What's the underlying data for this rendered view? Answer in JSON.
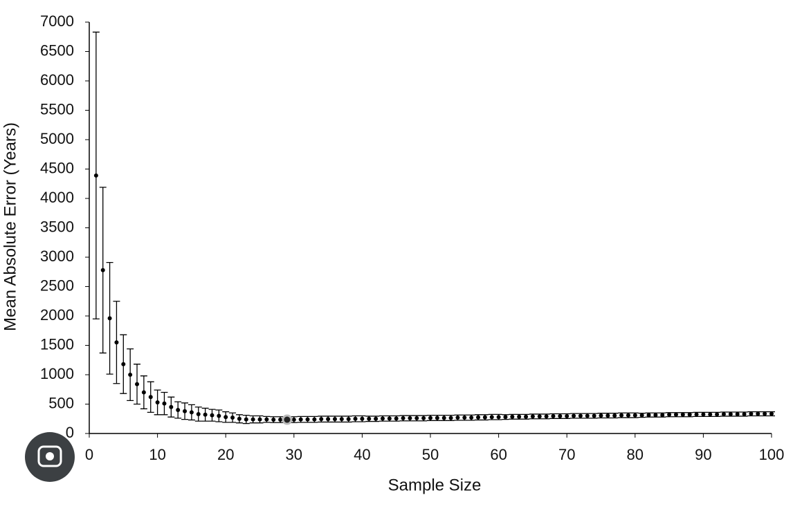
{
  "chart_data": {
    "type": "errorbar",
    "x_label": "Sample Size",
    "y_label": "Mean Absolute Error (Years)",
    "x": [
      1,
      2,
      3,
      4,
      5,
      6,
      7,
      8,
      9,
      10,
      11,
      12,
      13,
      14,
      15,
      16,
      17,
      18,
      19,
      20,
      21,
      22,
      23,
      24,
      25,
      26,
      27,
      28,
      29,
      30,
      31,
      32,
      33,
      34,
      35,
      36,
      37,
      38,
      39,
      40,
      41,
      42,
      43,
      44,
      45,
      46,
      47,
      48,
      49,
      50,
      51,
      52,
      53,
      54,
      55,
      56,
      57,
      58,
      59,
      60,
      61,
      62,
      63,
      64,
      65,
      66,
      67,
      68,
      69,
      70,
      71,
      72,
      73,
      74,
      75,
      76,
      77,
      78,
      79,
      80,
      81,
      82,
      83,
      84,
      85,
      86,
      87,
      88,
      89,
      90,
      91,
      92,
      93,
      94,
      95,
      96,
      97,
      98,
      99,
      100
    ],
    "values": [
      4390,
      2780,
      1960,
      1550,
      1180,
      1000,
      840,
      700,
      620,
      530,
      510,
      450,
      400,
      380,
      360,
      330,
      320,
      310,
      300,
      280,
      270,
      250,
      240,
      240,
      240,
      240,
      235,
      235,
      235,
      235,
      240,
      240,
      240,
      245,
      245,
      245,
      245,
      245,
      250,
      250,
      250,
      250,
      255,
      255,
      255,
      260,
      260,
      260,
      260,
      265,
      265,
      265,
      265,
      270,
      270,
      270,
      275,
      275,
      280,
      280,
      280,
      285,
      285,
      285,
      290,
      290,
      290,
      295,
      295,
      295,
      300,
      300,
      300,
      300,
      305,
      305,
      305,
      310,
      310,
      310,
      310,
      315,
      315,
      315,
      320,
      320,
      320,
      320,
      325,
      325,
      325,
      325,
      330,
      330,
      330,
      330,
      335,
      335,
      335,
      335
    ],
    "errors": [
      2440,
      1410,
      950,
      700,
      500,
      440,
      340,
      280,
      260,
      210,
      190,
      170,
      140,
      140,
      130,
      120,
      110,
      100,
      100,
      90,
      80,
      70,
      70,
      60,
      60,
      50,
      50,
      50,
      50,
      50,
      50,
      50,
      50,
      50,
      50,
      50,
      50,
      50,
      50,
      50,
      45,
      45,
      45,
      45,
      45,
      45,
      45,
      45,
      45,
      45,
      45,
      45,
      45,
      45,
      45,
      45,
      45,
      45,
      45,
      45,
      40,
      40,
      40,
      40,
      40,
      40,
      40,
      40,
      40,
      40,
      40,
      40,
      40,
      40,
      40,
      40,
      40,
      40,
      40,
      40,
      35,
      35,
      35,
      35,
      35,
      35,
      35,
      35,
      35,
      35,
      35,
      35,
      35,
      35,
      35,
      35,
      35,
      35,
      35,
      35
    ],
    "color": "#000000",
    "highlight_x": 29,
    "xlim": [
      0,
      100
    ],
    "xticks": [
      0,
      10,
      20,
      30,
      40,
      50,
      60,
      70,
      80,
      90,
      100
    ],
    "ylim": [
      0,
      7000
    ],
    "yticks": [
      0,
      500,
      1000,
      1500,
      2000,
      2500,
      3000,
      3500,
      4000,
      4500,
      5000,
      5500,
      6000,
      6500,
      7000
    ]
  }
}
